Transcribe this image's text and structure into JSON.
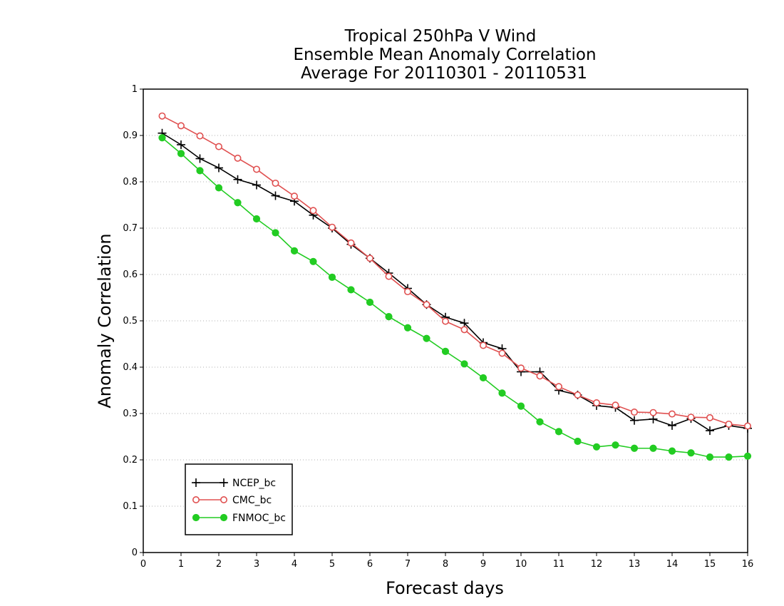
{
  "chart_data": {
    "type": "line",
    "title": [
      "Tropical 250hPa V Wind",
      "Ensemble Mean Anomaly Correlation",
      "Average For 20110301 - 20110531"
    ],
    "xlabel": "Forecast days",
    "ylabel": "Anomaly Correlation",
    "xlim": [
      0,
      16
    ],
    "ylim": [
      0,
      1
    ],
    "xticks": [
      "0",
      "1",
      "2",
      "3",
      "4",
      "5",
      "6",
      "7",
      "8",
      "9",
      "10",
      "11",
      "12",
      "13",
      "14",
      "15",
      "16"
    ],
    "yticks": [
      "0",
      "0.1",
      "0.2",
      "0.3",
      "0.4",
      "0.5",
      "0.6",
      "0.7",
      "0.8",
      "0.9",
      "1"
    ],
    "grid": "horizontal dotted",
    "legend_position": "bottom-left",
    "x": [
      0.5,
      1,
      1.5,
      2,
      2.5,
      3,
      3.5,
      4,
      4.5,
      5,
      5.5,
      6,
      6.5,
      7,
      7.5,
      8,
      8.5,
      9,
      9.5,
      10,
      10.5,
      11,
      11.5,
      12,
      12.5,
      13,
      13.5,
      14,
      14.5,
      15,
      15.5,
      16
    ],
    "series": [
      {
        "name": "NCEP_bc",
        "color": "#000000",
        "marker": "plus",
        "values": [
          0.905,
          0.88,
          0.85,
          0.83,
          0.805,
          0.793,
          0.77,
          0.758,
          0.728,
          0.7,
          0.665,
          0.635,
          0.603,
          0.57,
          0.535,
          0.508,
          0.495,
          0.453,
          0.44,
          0.39,
          0.39,
          0.35,
          0.34,
          0.317,
          0.313,
          0.285,
          0.288,
          0.274,
          0.289,
          0.263,
          0.274,
          0.268
        ]
      },
      {
        "name": "CMC_bc",
        "color": "#e05050",
        "marker": "open-circle",
        "values": [
          0.942,
          0.921,
          0.899,
          0.876,
          0.851,
          0.827,
          0.797,
          0.769,
          0.738,
          0.702,
          0.668,
          0.635,
          0.596,
          0.563,
          0.535,
          0.499,
          0.481,
          0.447,
          0.43,
          0.398,
          0.381,
          0.358,
          0.34,
          0.323,
          0.318,
          0.303,
          0.302,
          0.299,
          0.292,
          0.291,
          0.277,
          0.273
        ]
      },
      {
        "name": "FNMOC_bc",
        "color": "#22cc22",
        "marker": "filled-circle",
        "values": [
          0.895,
          0.861,
          0.824,
          0.787,
          0.755,
          0.72,
          0.69,
          0.651,
          0.628,
          0.594,
          0.567,
          0.54,
          0.509,
          0.485,
          0.462,
          0.434,
          0.407,
          0.377,
          0.344,
          0.316,
          0.282,
          0.261,
          0.24,
          0.228,
          0.232,
          0.225,
          0.225,
          0.219,
          0.215,
          0.206,
          0.206,
          0.208
        ]
      }
    ]
  }
}
